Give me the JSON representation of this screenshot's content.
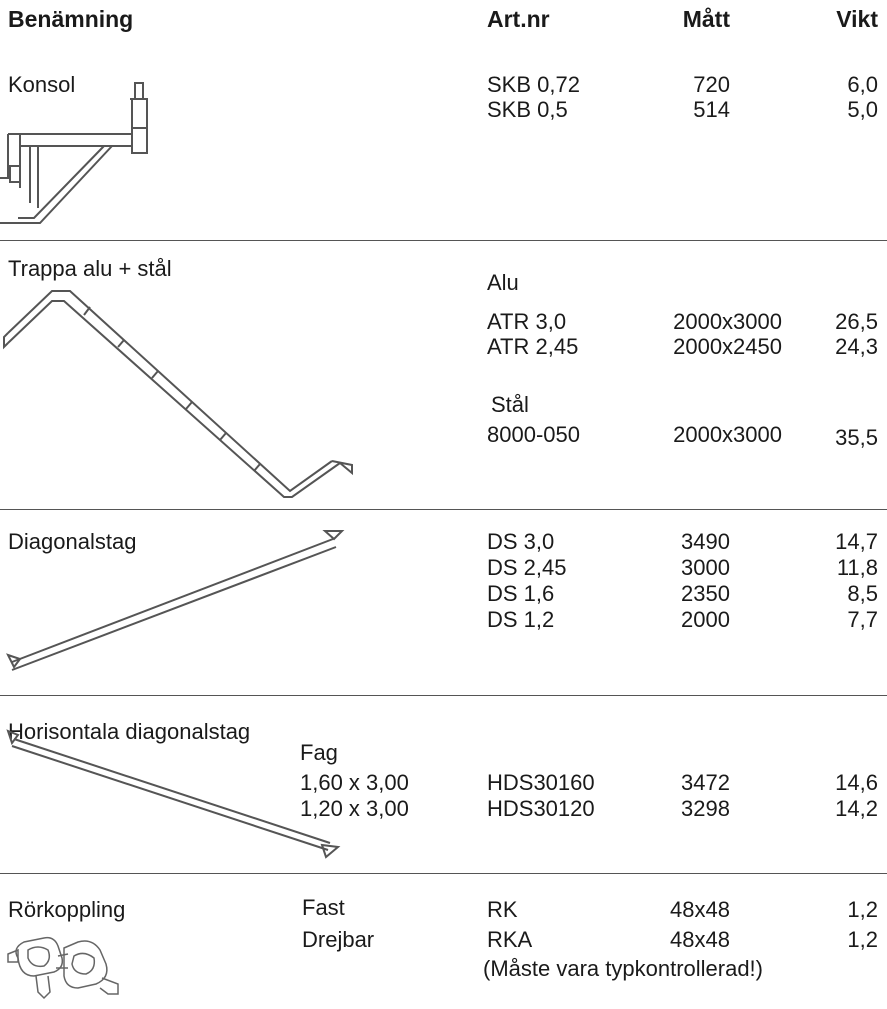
{
  "header": {
    "name": "Benämning",
    "artnr": "Art.nr",
    "matt": "Mått",
    "vikt": "Vikt"
  },
  "rows": [
    {
      "name": "Konsol",
      "items": [
        {
          "artnr": "SKB 0,72",
          "matt": "720",
          "vikt": "6,0"
        },
        {
          "artnr": "SKB 0,5",
          "matt": "514",
          "vikt": "5,0"
        }
      ],
      "icon": "console-bracket-icon"
    },
    {
      "name": "Trappa alu + stål",
      "group1": "Alu",
      "items1": [
        {
          "artnr": "ATR 3,0",
          "matt": "2000x3000",
          "vikt": "26,5"
        },
        {
          "artnr": "ATR 2,45",
          "matt": "2000x2450",
          "vikt": "24,3"
        }
      ],
      "group2": "Stål",
      "items2": [
        {
          "artnr": "8000-050",
          "matt": "2000x3000",
          "vikt": "35,5"
        }
      ],
      "icon": "stair-icon"
    },
    {
      "name": "Diagonalstag",
      "items": [
        {
          "artnr": "DS 3,0",
          "matt": "3490",
          "vikt": "14,7"
        },
        {
          "artnr": "DS 2,45",
          "matt": "3000",
          "vikt": "11,8"
        },
        {
          "artnr": "DS 1,6",
          "matt": "2350",
          "vikt": "8,5"
        },
        {
          "artnr": "DS 1,2",
          "matt": "2000",
          "vikt": "7,7"
        }
      ],
      "icon": "diagonal-brace-icon"
    },
    {
      "name": "Horisontala diagonalstag",
      "fag_label": "Fag",
      "items": [
        {
          "fag": "1,60 x 3,00",
          "artnr": "HDS30160",
          "matt": "3472",
          "vikt": "14,6"
        },
        {
          "fag": "1,20 x 3,00",
          "artnr": "HDS30120",
          "matt": "3298",
          "vikt": "14,2"
        }
      ],
      "icon": "horizontal-brace-icon"
    },
    {
      "name": "Rörkoppling",
      "items": [
        {
          "type": "Fast",
          "artnr": "RK",
          "matt": "48x48",
          "vikt": "1,2"
        },
        {
          "type": "Drejbar",
          "artnr": "RKA",
          "matt": "48x48",
          "vikt": "1,2"
        }
      ],
      "note": "(Måste vara typkontrollerad!)",
      "icon": "pipe-coupler-icon"
    }
  ]
}
